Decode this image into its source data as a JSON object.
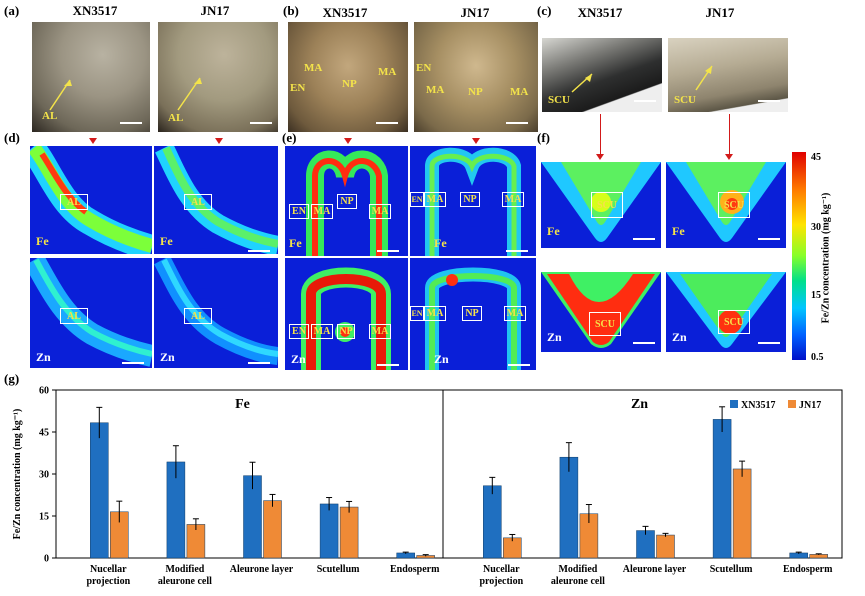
{
  "panels": {
    "a": {
      "letter": "(a)",
      "left_title": "XN3517",
      "right_title": "JN17",
      "left_label": "AL",
      "right_label": "AL"
    },
    "b": {
      "letter": "(b)",
      "left_title": "XN3517",
      "right_title": "JN17",
      "left_labels": {
        "ma1": "MA",
        "ma2": "MA",
        "en": "EN",
        "np": "NP"
      },
      "right_labels": {
        "en": "EN",
        "ma1": "MA",
        "np": "NP",
        "ma2": "MA"
      }
    },
    "c": {
      "letter": "(c)",
      "left_title": "XN3517",
      "right_title": "JN17",
      "left_label": "SCU",
      "right_label": "SCU"
    },
    "d": {
      "letter": "(d)",
      "fe": "Fe",
      "zn": "Zn",
      "box": "AL"
    },
    "e": {
      "letter": "(e)",
      "fe": "Fe",
      "zn": "Zn",
      "en": "EN",
      "ma": "MA",
      "np": "NP"
    },
    "f": {
      "letter": "(f)",
      "fe": "Fe",
      "zn": "Zn",
      "box": "SCU"
    },
    "g": {
      "letter": "(g)"
    }
  },
  "colorbar": {
    "title": "Fe/Zn concentration (mg kg⁻¹)",
    "ticks": [
      "45",
      "30",
      "15",
      "0.5"
    ],
    "tick_values": [
      45,
      30,
      15,
      0.5
    ]
  },
  "chart_data": {
    "type": "bar",
    "ylabel": "Fe/Zn concentration (mg kg⁻¹)",
    "ylim": [
      0,
      60
    ],
    "yticks": [
      "0",
      "15",
      "30",
      "45",
      "60"
    ],
    "legend": {
      "placement": "top-right",
      "series": [
        "XN3517",
        "JN17"
      ]
    },
    "colors": {
      "XN3517": "#1f6fc0",
      "JN17": "#ef8a36"
    },
    "groups": [
      {
        "title": "Fe",
        "categories": [
          "Nucellar projection",
          "Modified aleurone cell",
          "Aleurone layer",
          "Scutellum",
          "Endosperm"
        ],
        "series": [
          {
            "name": "XN3517",
            "values": [
              48.3,
              34.3,
              29.4,
              19.3,
              1.8
            ],
            "errors": [
              5.5,
              5.8,
              4.8,
              2.3,
              0.3
            ]
          },
          {
            "name": "JN17",
            "values": [
              16.5,
              12.0,
              20.5,
              18.2,
              0.9
            ],
            "errors": [
              3.8,
              2.0,
              2.2,
              2.0,
              0.3
            ]
          }
        ]
      },
      {
        "title": "Zn",
        "categories": [
          "Nucellar projection",
          "Modified aleurone cell",
          "Aleurone layer",
          "Scutellum",
          "Endosperm"
        ],
        "series": [
          {
            "name": "XN3517",
            "values": [
              25.8,
              36.0,
              9.8,
              49.5,
              1.8
            ],
            "errors": [
              3.0,
              5.2,
              1.5,
              4.5,
              0.3
            ]
          },
          {
            "name": "JN17",
            "values": [
              7.2,
              15.8,
              8.2,
              31.8,
              1.3
            ],
            "errors": [
              1.2,
              3.3,
              0.6,
              2.8,
              0.2
            ]
          }
        ]
      }
    ]
  }
}
